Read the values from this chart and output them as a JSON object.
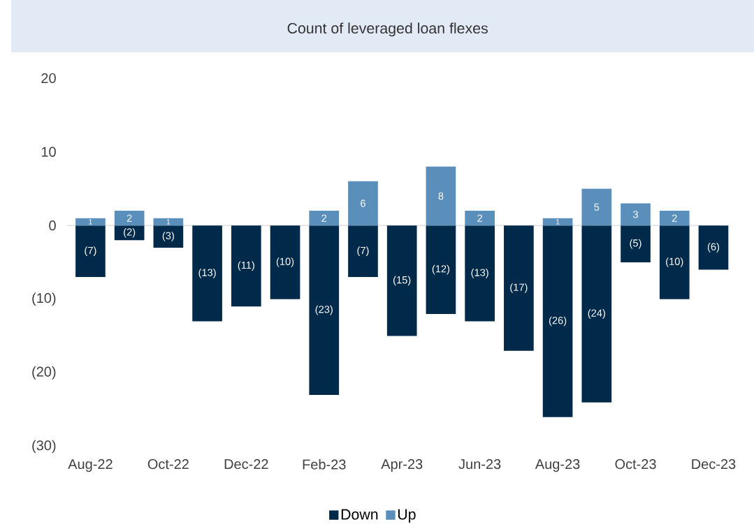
{
  "chart_data": {
    "type": "bar",
    "title": "Count of leveraged loan flexes",
    "categories": [
      "Aug-22",
      null,
      "Oct-22",
      null,
      "Dec-22",
      null,
      "Feb-23",
      null,
      "Apr-23",
      null,
      "Jun-23",
      null,
      "Aug-23",
      null,
      "Oct-23",
      null,
      "Dec-23"
    ],
    "stacked": true,
    "series": [
      {
        "name": "Down",
        "color": "#012a4a",
        "values": [
          -7,
          -2,
          -3,
          -13,
          -11,
          -10,
          -23,
          -7,
          -15,
          -12,
          -13,
          -17,
          -26,
          -24,
          -5,
          -10,
          -6
        ],
        "value_labels": [
          "(7)",
          "(2)",
          "(3)",
          "(13)",
          "(11)",
          "(10)",
          "(23)",
          "(7)",
          "(15)",
          "(12)",
          "(13)",
          "(17)",
          "(26)",
          "(24)",
          "(5)",
          "(10)",
          "(6)"
        ]
      },
      {
        "name": "Up",
        "color": "#5a8ebb",
        "values": [
          1,
          2,
          1,
          null,
          null,
          null,
          2,
          6,
          null,
          8,
          2,
          null,
          1,
          5,
          3,
          2,
          null
        ],
        "value_labels": [
          "1",
          "2",
          "1",
          null,
          null,
          null,
          "2",
          "6",
          null,
          "8",
          "2",
          null,
          "1",
          "5",
          "3",
          "2",
          null
        ]
      }
    ],
    "ylim": [
      -30,
      20
    ],
    "yticks": [
      {
        "value": -30,
        "label": "(30)"
      },
      {
        "value": -20,
        "label": "(20)"
      },
      {
        "value": -10,
        "label": "(10)"
      },
      0,
      10,
      20
    ],
    "legend": "bottom"
  }
}
